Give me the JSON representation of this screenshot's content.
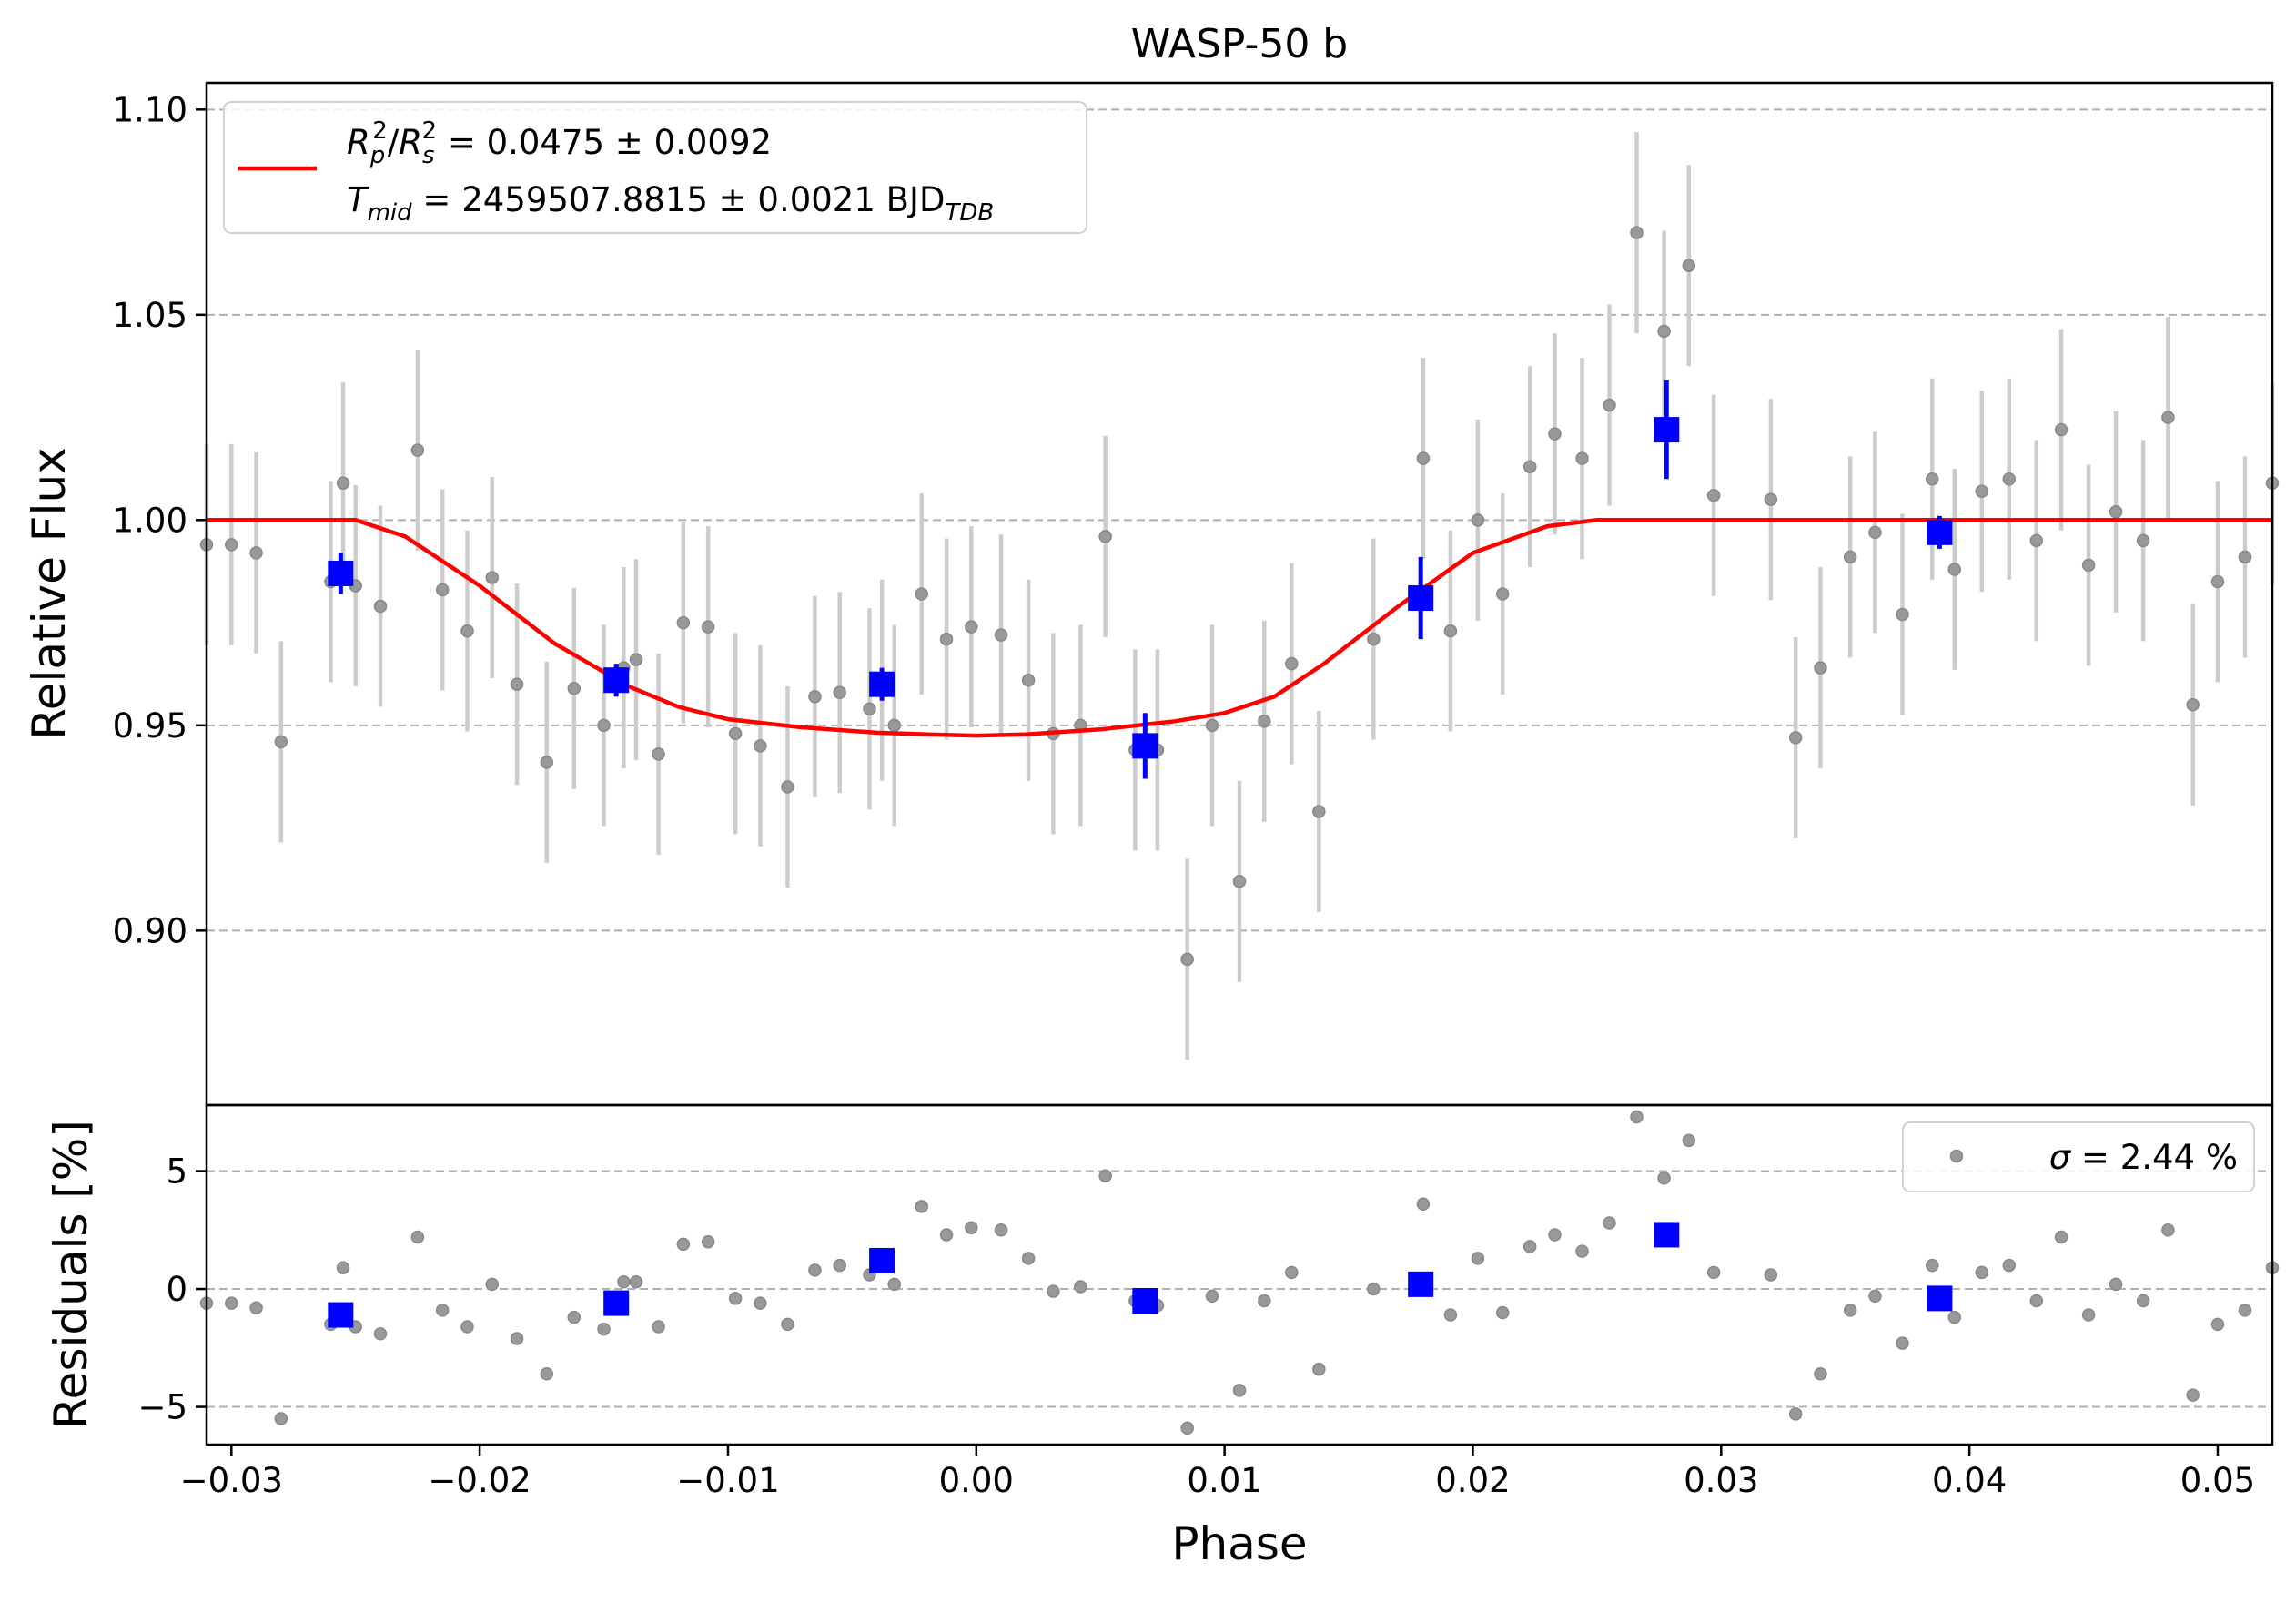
{
  "chart_data": [
    {
      "type": "scatter",
      "panel": "light-curve",
      "title": "WASP-50 b",
      "xlabel": "",
      "ylabel": "Relative Flux",
      "xlim": [
        -0.031,
        0.0522
      ],
      "ylim": [
        0.8575,
        1.1065
      ],
      "grid": "y-dashed",
      "y_ticks": [
        0.9,
        0.95,
        1.0,
        1.05,
        1.1
      ],
      "y_tick_labels": [
        "0.90",
        "0.95",
        "1.00",
        "1.05",
        "1.10"
      ],
      "legend": {
        "placement": "upper-left",
        "line1": "Rₚ²/Rₛ² = 0.0475 ± 0.0092",
        "line2": "Tₘᵢₑ = 2459507.8815 ± 0.0021 BJDₜₑ₂",
        "label_parts": {
          "rp": "R",
          "rp_sub": "p",
          "rp_sup": "2",
          "slash": "/",
          "rs": "R",
          "rs_sub": "s",
          "rs_sup": "2",
          "rad_value": " = 0.0475 ± 0.0092",
          "t": "T",
          "t_sub": "mid",
          "t_value": " = 2459507.8815 ± 0.0021 BJD",
          "t_tail_sub": "TDB"
        }
      },
      "colors": {
        "model": "#ff0000",
        "binned": "#0000ff",
        "raw": "#888888",
        "raw_error": "#cccccc",
        "grid": "#b0b0b0"
      },
      "series": [
        {
          "kind": "raw",
          "x": [
            -0.031,
            -0.03,
            -0.029,
            -0.028,
            -0.026,
            -0.0255,
            -0.025,
            -0.024,
            -0.0225,
            -0.0215,
            -0.0205,
            -0.0195,
            -0.0185,
            -0.0173,
            -0.0162,
            -0.015,
            -0.0142,
            -0.0137,
            -0.0128,
            -0.0118,
            -0.0108,
            -0.0097,
            -0.0087,
            -0.0076,
            -0.0065,
            -0.0055,
            -0.0043,
            -0.0038,
            -0.0033,
            -0.0022,
            -0.0012,
            -0.0002,
            0.001,
            0.0021,
            0.0031,
            0.0042,
            0.0052,
            0.0064,
            0.0073,
            0.0085,
            0.0095,
            0.0106,
            0.0116,
            0.0127,
            0.0138,
            0.016,
            0.018,
            0.0191,
            0.0202,
            0.0212,
            0.0223,
            0.0233,
            0.0244,
            0.0255,
            0.0266,
            0.0277,
            0.0287,
            0.0297,
            0.032,
            0.033,
            0.034,
            0.0352,
            0.0362,
            0.0373,
            0.0385,
            0.0394,
            0.0405,
            0.0416,
            0.0427,
            0.0437,
            0.0448,
            0.0459,
            0.047,
            0.048,
            0.049,
            0.05,
            0.0511,
            0.0522
          ],
          "y": [
            0.994,
            0.994,
            0.992,
            0.946,
            0.985,
            1.009,
            0.984,
            0.979,
            1.017,
            0.983,
            0.973,
            0.986,
            0.96,
            0.941,
            0.959,
            0.95,
            0.964,
            0.966,
            0.943,
            0.975,
            0.974,
            0.948,
            0.945,
            0.935,
            0.957,
            0.958,
            0.954,
            0.961,
            0.95,
            0.982,
            0.971,
            0.974,
            0.972,
            0.961,
            0.948,
            0.95,
            0.996,
            0.944,
            0.944,
            0.893,
            0.95,
            0.912,
            0.951,
            0.965,
            0.929,
            0.971,
            1.015,
            0.973,
            1.0,
            0.982,
            1.013,
            1.021,
            1.015,
            1.028,
            1.07,
            1.046,
            1.062,
            1.006,
            1.005,
            0.947,
            0.964,
            0.991,
            0.997,
            0.977,
            1.01,
            0.988,
            1.007,
            1.01,
            0.995,
            1.022,
            0.989,
            1.002,
            0.995,
            1.025,
            0.955,
            0.985,
            0.991,
            1.009
          ],
          "yerr": 0.0245
        },
        {
          "kind": "binned",
          "x": [
            -0.0256,
            -0.0145,
            -0.0038,
            0.0068,
            0.0179,
            0.0278,
            0.0388
          ],
          "y": [
            0.987,
            0.961,
            0.96,
            0.945,
            0.981,
            1.022,
            0.997
          ],
          "yerr": [
            0.005,
            0.004,
            0.004,
            0.008,
            0.01,
            0.012,
            0.004
          ]
        },
        {
          "kind": "model",
          "x": [
            -0.031,
            -0.025,
            -0.023,
            -0.02,
            -0.017,
            -0.014,
            -0.012,
            -0.01,
            -0.007,
            -0.004,
            -0.002,
            0.0,
            0.002,
            0.005,
            0.008,
            0.01,
            0.012,
            0.014,
            0.017,
            0.02,
            0.023,
            0.025,
            0.03,
            0.04,
            0.0522
          ],
          "y": [
            1.0,
            1.0,
            0.996,
            0.984,
            0.97,
            0.9595,
            0.9545,
            0.9515,
            0.9495,
            0.9482,
            0.9478,
            0.9475,
            0.9478,
            0.949,
            0.951,
            0.953,
            0.957,
            0.965,
            0.979,
            0.992,
            0.9985,
            1.0,
            1.0,
            1.0,
            1.0
          ]
        }
      ]
    },
    {
      "type": "scatter",
      "panel": "residuals",
      "xlabel": "Phase",
      "ylabel": "Residuals [%]",
      "xlim": [
        -0.031,
        0.0522
      ],
      "ylim": [
        -6.6,
        7.8
      ],
      "grid": "y-dashed",
      "x_ticks": [
        -0.03,
        -0.02,
        -0.01,
        0.0,
        0.01,
        0.02,
        0.03,
        0.04,
        0.05
      ],
      "x_tick_labels": [
        "−0.03",
        "−0.02",
        "−0.01",
        "0.00",
        "0.01",
        "0.02",
        "0.03",
        "0.04",
        "0.05"
      ],
      "y_ticks": [
        -5,
        0,
        5
      ],
      "y_tick_labels": [
        "−5",
        "0",
        "5"
      ],
      "legend": {
        "placement": "upper-right",
        "label": "σ = 2.44 %",
        "label_parts": {
          "sigma": "σ",
          "value": " = 2.44 %"
        }
      },
      "series": [
        {
          "kind": "raw",
          "x": [
            -0.031,
            -0.03,
            -0.029,
            -0.028,
            -0.026,
            -0.0255,
            -0.025,
            -0.024,
            -0.0225,
            -0.0215,
            -0.0205,
            -0.0195,
            -0.0185,
            -0.0173,
            -0.0162,
            -0.015,
            -0.0142,
            -0.0137,
            -0.0128,
            -0.0118,
            -0.0108,
            -0.0097,
            -0.0087,
            -0.0076,
            -0.0065,
            -0.0055,
            -0.0043,
            -0.0038,
            -0.0033,
            -0.0022,
            -0.0012,
            -0.0002,
            0.001,
            0.0021,
            0.0031,
            0.0042,
            0.0052,
            0.0064,
            0.0073,
            0.0085,
            0.0095,
            0.0106,
            0.0116,
            0.0127,
            0.0138,
            0.016,
            0.018,
            0.0191,
            0.0202,
            0.0212,
            0.0223,
            0.0233,
            0.0244,
            0.0255,
            0.0266,
            0.0277,
            0.0287,
            0.0297,
            0.032,
            0.033,
            0.034,
            0.0352,
            0.0362,
            0.0373,
            0.0385,
            0.0394,
            0.0405,
            0.0416,
            0.0427,
            0.0437,
            0.0448,
            0.0459,
            0.047,
            0.048,
            0.049,
            0.05,
            0.0511,
            0.0522
          ],
          "y": [
            -0.6,
            -0.6,
            -0.8,
            -5.5,
            -1.5,
            0.9,
            -1.6,
            -1.9,
            2.2,
            -0.9,
            -1.6,
            0.2,
            -2.1,
            -3.6,
            -1.2,
            -1.7,
            0.3,
            0.3,
            -1.6,
            1.9,
            2.0,
            -0.4,
            -0.6,
            -1.5,
            0.8,
            1.0,
            0.6,
            1.1,
            0.2,
            3.5,
            2.3,
            2.6,
            2.5,
            1.3,
            -0.1,
            0.1,
            4.8,
            -0.5,
            -0.7,
            -5.9,
            -0.3,
            -4.3,
            -0.5,
            0.7,
            -3.4,
            0.0,
            3.6,
            -1.1,
            1.3,
            -1.0,
            1.8,
            2.3,
            1.6,
            2.8,
            7.3,
            4.7,
            6.3,
            0.7,
            0.6,
            -5.3,
            -3.6,
            -0.9,
            -0.3,
            -2.3,
            1.0,
            -1.2,
            0.7,
            1.0,
            -0.5,
            2.2,
            -1.1,
            0.2,
            -0.5,
            2.5,
            -4.5,
            -1.5,
            -0.9,
            0.9
          ]
        },
        {
          "kind": "binned",
          "x": [
            -0.0256,
            -0.0145,
            -0.0038,
            0.0068,
            0.0179,
            0.0278,
            0.0388
          ],
          "y": [
            -1.1,
            -0.6,
            1.2,
            -0.5,
            0.2,
            2.3,
            -0.4
          ]
        }
      ]
    }
  ]
}
